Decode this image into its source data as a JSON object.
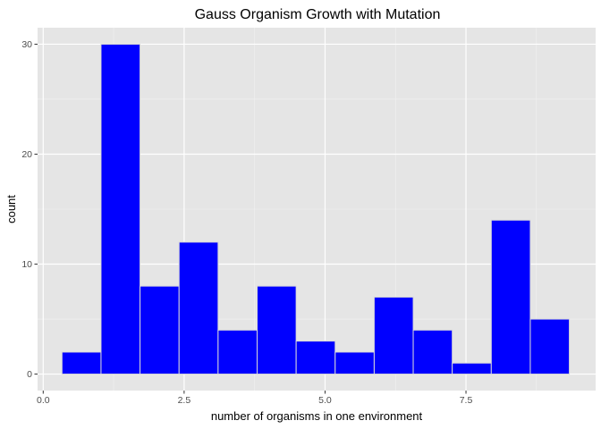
{
  "chart_data": {
    "type": "bar",
    "title": "Gauss Organism Growth with Mutation",
    "xlabel": "number of organisms in one environment",
    "ylabel": "count",
    "bin_edges": [
      0.3333,
      1.0256,
      1.7179,
      2.4103,
      3.1026,
      3.7949,
      4.4872,
      5.1795,
      5.8718,
      6.5641,
      7.2564,
      7.9487,
      8.641,
      9.3333
    ],
    "values": [
      2,
      30,
      8,
      12,
      4,
      8,
      3,
      2,
      7,
      4,
      1,
      14,
      5
    ],
    "xlim": [
      -0.1,
      9.8
    ],
    "ylim": [
      -1.5,
      31.5
    ],
    "x_ticks": [
      0.0,
      2.5,
      5.0,
      7.5
    ],
    "x_tick_labels": [
      "0.0",
      "2.5",
      "5.0",
      "7.5"
    ],
    "y_ticks": [
      0,
      10,
      20,
      30
    ],
    "y_tick_labels": [
      "0",
      "10",
      "20",
      "30"
    ],
    "grid": true,
    "colors": {
      "bar_fill": "#0000ff",
      "bar_stroke": "#d9d9d9",
      "panel": "#e5e5e5",
      "grid_major": "#ffffff",
      "grid_minor": "#f2f2f2"
    }
  }
}
